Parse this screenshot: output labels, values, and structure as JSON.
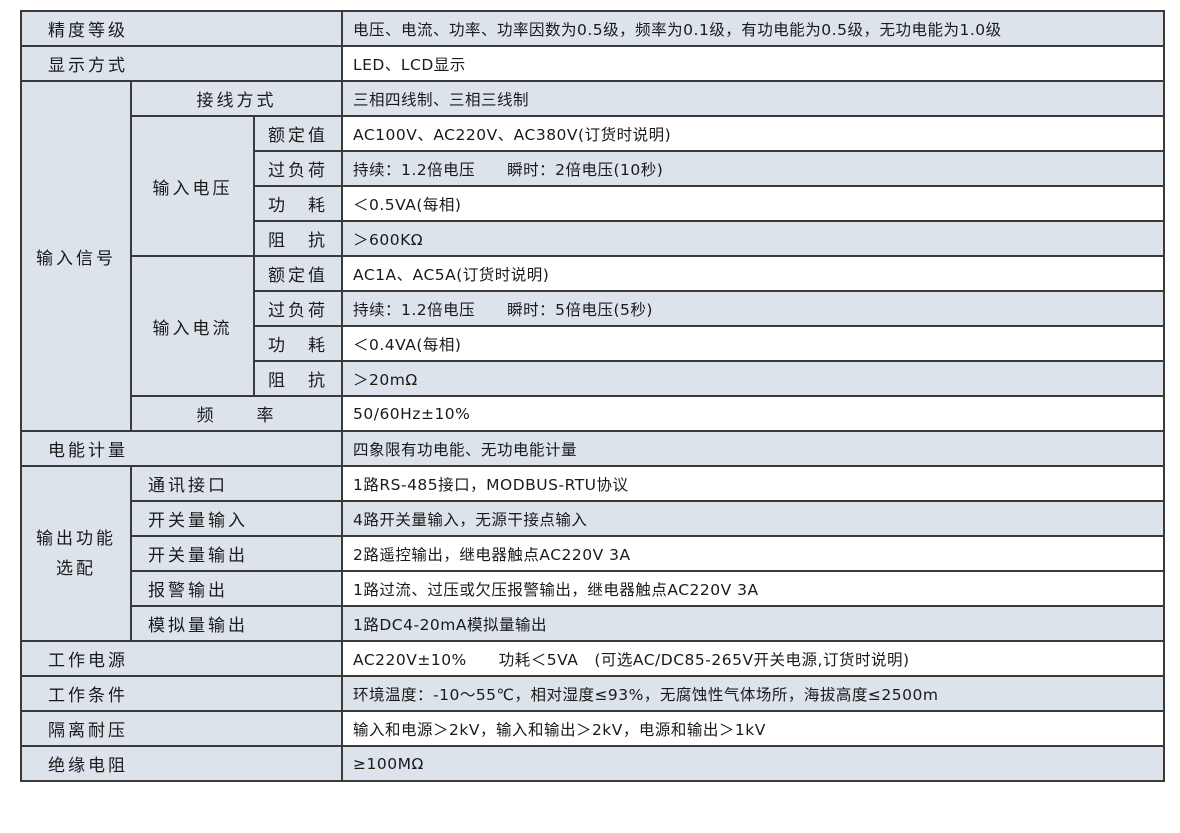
{
  "colors": {
    "label_bg": "#dce3ea",
    "alt_row_bg": "#ffffff",
    "border": "#3a3a3a"
  },
  "rows": {
    "accuracy": {
      "label": "精度等级",
      "value": "电压、电流、功率、功率因数为0.5级，频率为0.1级，有功电能为0.5级，无功电能为1.0级"
    },
    "display": {
      "label": "显示方式",
      "value": "LED、LCD显示"
    },
    "input_signal": {
      "label": "输入信号",
      "wiring": {
        "label": "接线方式",
        "value": "三相四线制、三相三线制"
      },
      "voltage": {
        "label": "输入电压",
        "rated": {
          "label": "额定值",
          "value": "AC100V、AC220V、AC380V(订货时说明)"
        },
        "overload": {
          "label": "过负荷",
          "value": "持续：1.2倍电压　　瞬时：2倍电压(10秒)"
        },
        "power": {
          "label": "功　耗",
          "value": "＜0.5VA(每相)"
        },
        "impedance": {
          "label": "阻　抗",
          "value": "＞600KΩ"
        }
      },
      "current": {
        "label": "输入电流",
        "rated": {
          "label": "额定值",
          "value": "AC1A、AC5A(订货时说明)"
        },
        "overload": {
          "label": "过负荷",
          "value": "持续：1.2倍电压　　瞬时：5倍电压(5秒)"
        },
        "power": {
          "label": "功　耗",
          "value": "＜0.4VA(每相)"
        },
        "impedance": {
          "label": "阻　抗",
          "value": "＞20mΩ"
        }
      },
      "frequency": {
        "label": "频　　率",
        "value": "50/60Hz±10%"
      }
    },
    "energy": {
      "label": "电能计量",
      "value": "四象限有功电能、无功电能计量"
    },
    "output": {
      "label": "输出功能选配",
      "comm": {
        "label": "通讯接口",
        "value": "1路RS-485接口，MODBUS-RTU协议"
      },
      "di": {
        "label": "开关量输入",
        "value": "4路开关量输入，无源干接点输入"
      },
      "do": {
        "label": "开关量输出",
        "value": "2路遥控输出，继电器触点AC220V 3A"
      },
      "alarm": {
        "label": "报警输出",
        "value": "1路过流、过压或欠压报警输出，继电器触点AC220V 3A"
      },
      "analog": {
        "label": "模拟量输出",
        "value": "1路DC4-20mA模拟量输出"
      }
    },
    "supply": {
      "label": "工作电源",
      "value": "AC220V±10%　　功耗＜5VA　(可选AC/DC85-265V开关电源,订货时说明)"
    },
    "conditions": {
      "label": "工作条件",
      "value": "环境温度：-10～55℃，相对湿度≤93%，无腐蚀性气体场所，海拔高度≤2500m"
    },
    "isolation": {
      "label": "隔离耐压",
      "value": "输入和电源＞2kV，输入和输出＞2kV，电源和输出＞1kV"
    },
    "insulation": {
      "label": "绝缘电阻",
      "value": "≥100MΩ"
    }
  }
}
